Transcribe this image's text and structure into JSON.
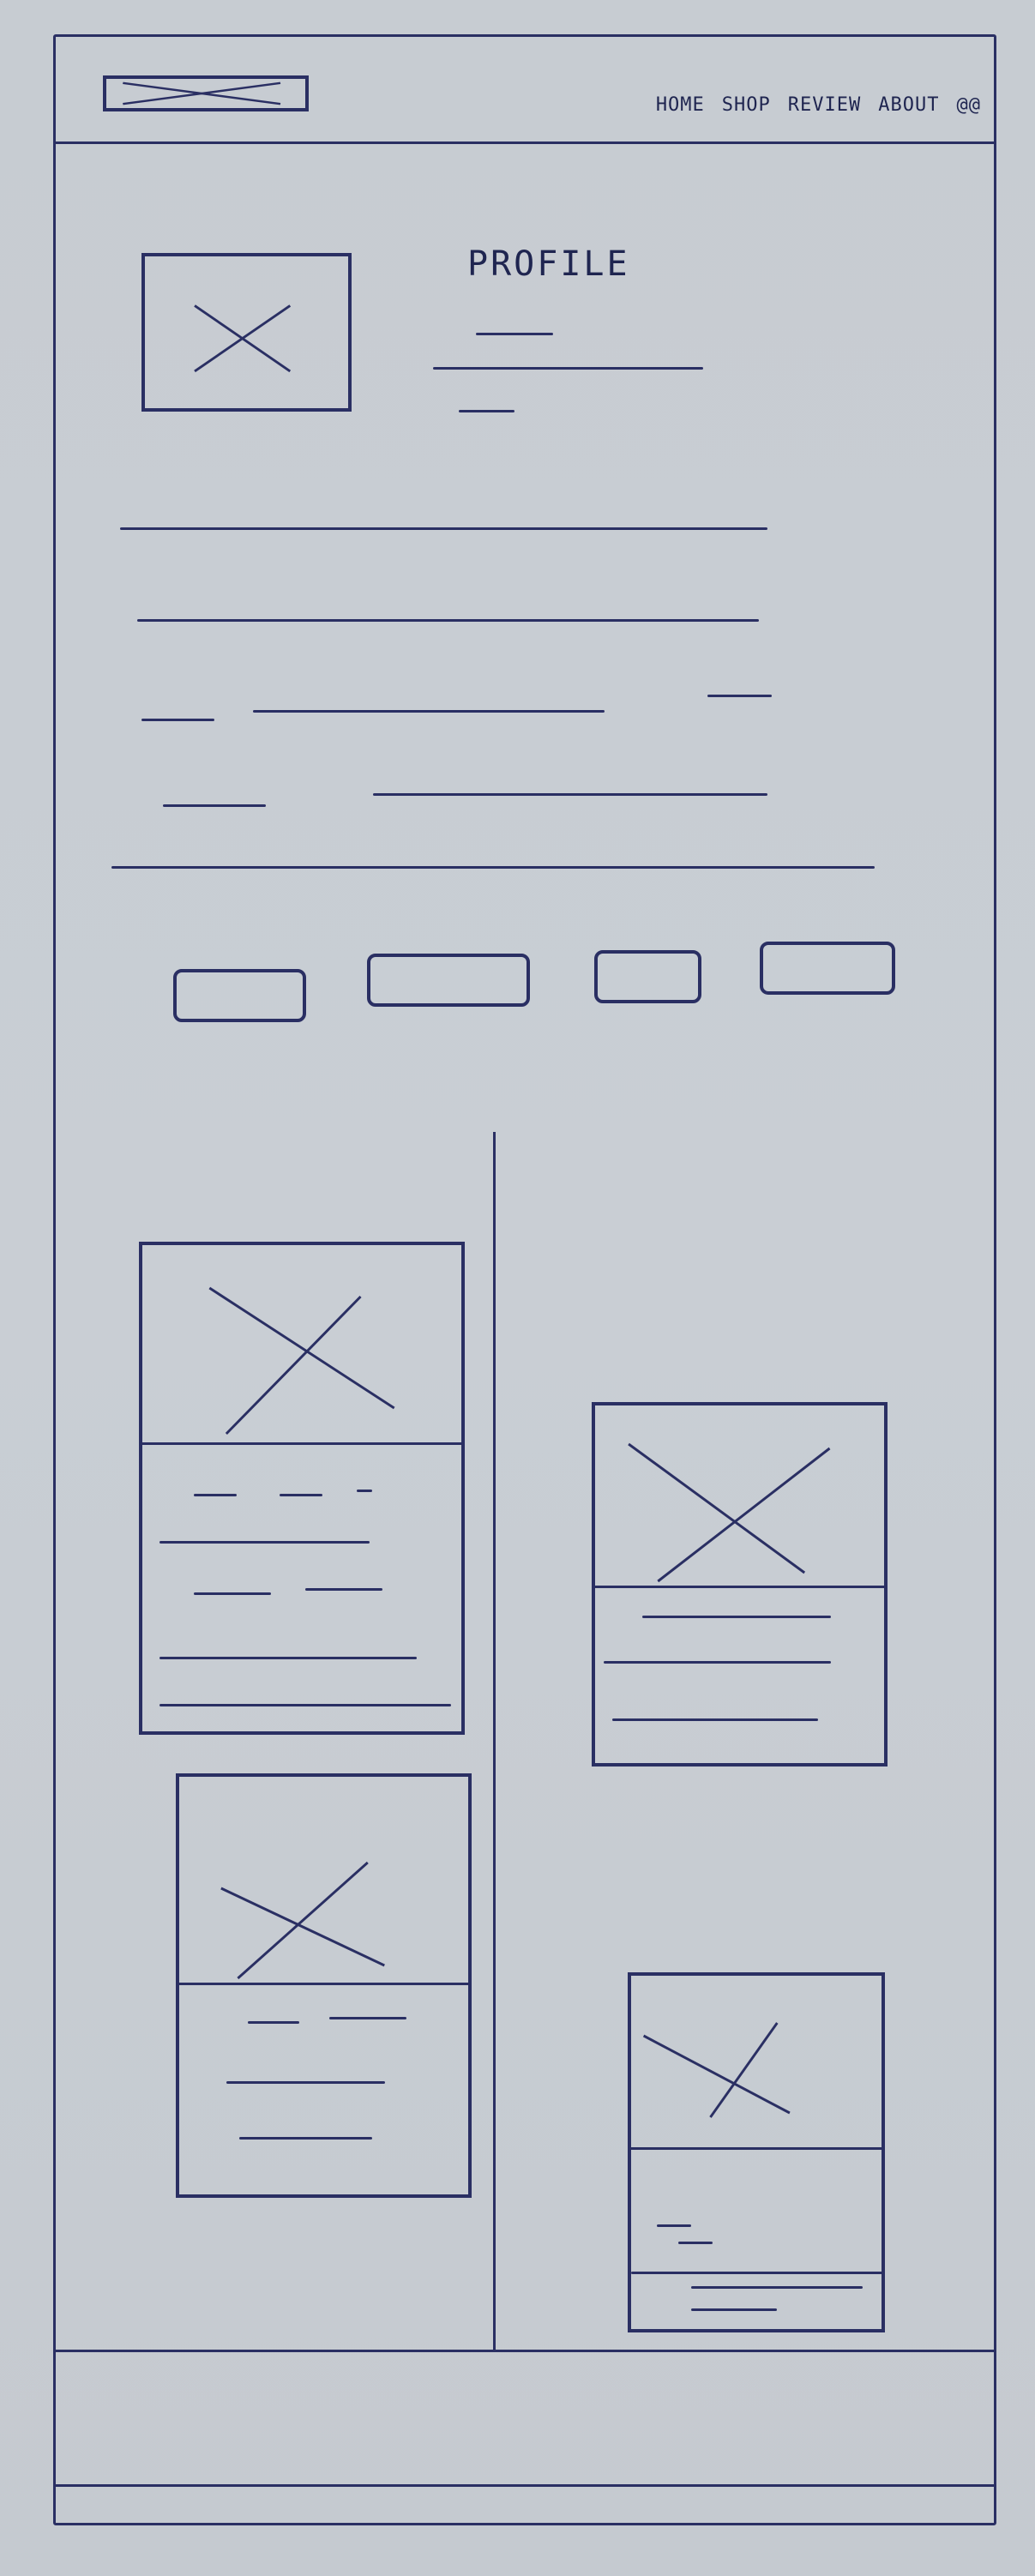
{
  "header": {
    "nav": [
      "HOME",
      "SHOP",
      "REVIEW",
      "ABOUT",
      "@@"
    ]
  },
  "profile": {
    "title": "PROFILE"
  },
  "icons": {
    "placeholder": "image-placeholder-icon"
  },
  "colors": {
    "ink": "#2a2f63",
    "paper": "#c9cdd3"
  }
}
